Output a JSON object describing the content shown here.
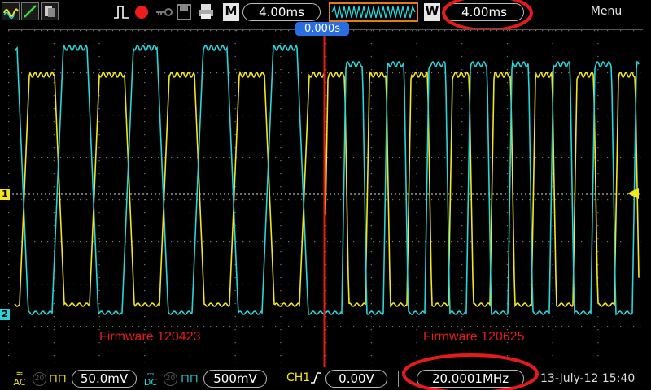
{
  "toolbar": {
    "main_timebase": "4.00ms",
    "window_timebase": "4.00ms",
    "m_label": "M",
    "w_label": "W",
    "menu_label": "Menu"
  },
  "trigger_position": "0.000s",
  "annotations": {
    "left": "Firmware 120423",
    "right": "Firmware 120625"
  },
  "bottom": {
    "ch1_scale": "50.0mV",
    "ch2_scale": "500mV",
    "ch1_coupling": "AC",
    "ch2_coupling": "DC",
    "bandwidth_badge": "20",
    "trigger_source": "CH1",
    "trigger_level": "0.00V",
    "frequency": "20.0001MHz",
    "datetime": "13-July-12 15:40"
  },
  "colors": {
    "ch1": "#f2e61d",
    "ch2": "#2ad4d9",
    "annotation": "#e31b1b",
    "trigger_badge": "#2a6de0"
  },
  "channel_markers": {
    "ch1": "1",
    "ch2": "2"
  },
  "icons": [
    "waveform-icon",
    "cursor-icon",
    "save-icon",
    "trigger-edge-icon",
    "record-dot-icon",
    "key-icon",
    "disk-icon",
    "print-icon"
  ]
}
